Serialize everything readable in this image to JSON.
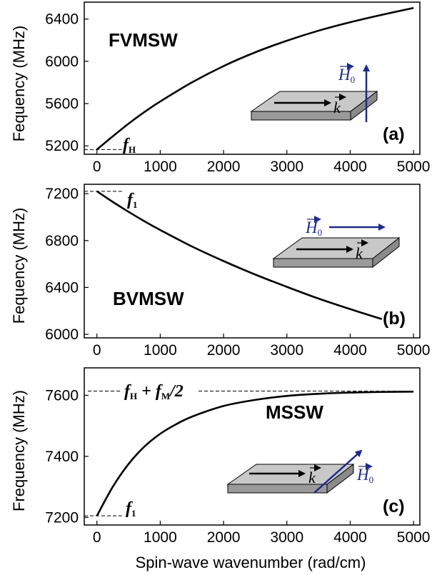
{
  "x_label": "Spin-wave wavenumber (rad/cm)",
  "colors": {
    "field_arrow": "#1f2a8c",
    "curve": "#000000",
    "slab_top": "#c8c8c8",
    "slab_side": "#9a9a9a"
  },
  "chart_data": [
    {
      "type": "line",
      "panel_id": "a",
      "title": "FVMSW",
      "panel_letter": "(a)",
      "ylabel": "Fequency (MHz)",
      "xlim": [
        -200,
        5100
      ],
      "ylim": [
        5120,
        6560
      ],
      "xticks": [
        0,
        1000,
        2000,
        3000,
        4000,
        5000
      ],
      "yticks": [
        5200,
        5600,
        6000,
        6400
      ],
      "x": [
        0,
        250,
        500,
        750,
        1000,
        1500,
        2000,
        2500,
        3000,
        3500,
        4000,
        4500,
        5000
      ],
      "y": [
        5165,
        5290,
        5410,
        5520,
        5620,
        5800,
        5955,
        6085,
        6195,
        6290,
        6370,
        6440,
        6505
      ],
      "reference_line": {
        "label": "f",
        "sub": "H",
        "value": 5165,
        "extent": "left"
      },
      "inset": {
        "field_label": "H",
        "field_sub": "0",
        "wave_label": "k",
        "field_direction": "perpendicular"
      }
    },
    {
      "type": "line",
      "panel_id": "b",
      "title": "BVMSW",
      "panel_letter": "(b)",
      "ylabel": "Fequency (MHz)",
      "xlim": [
        -200,
        5100
      ],
      "ylim": [
        5970,
        7280
      ],
      "xticks": [
        0,
        1000,
        2000,
        3000,
        4000,
        5000
      ],
      "yticks": [
        6000,
        6400,
        6800,
        7200
      ],
      "x": [
        0,
        250,
        500,
        750,
        1000,
        1500,
        2000,
        2500,
        3000,
        3500,
        4000,
        4500
      ],
      "y": [
        7220,
        7130,
        7045,
        6965,
        6890,
        6750,
        6625,
        6510,
        6405,
        6305,
        6215,
        6130
      ],
      "reference_line": {
        "label": "f",
        "sub": "1",
        "value": 7220,
        "extent": "left"
      },
      "inset": {
        "field_label": "H",
        "field_sub": "0",
        "wave_label": "k",
        "field_direction": "parallel"
      }
    },
    {
      "type": "line",
      "panel_id": "c",
      "title": "MSSW",
      "panel_letter": "(c)",
      "ylabel": "Frequency (MHz)",
      "xlim": [
        -200,
        5100
      ],
      "ylim": [
        7175,
        7690
      ],
      "xticks": [
        0,
        1000,
        2000,
        3000,
        4000,
        5000
      ],
      "yticks": [
        7200,
        7400,
        7600
      ],
      "x": [
        0,
        250,
        500,
        750,
        1000,
        1250,
        1500,
        2000,
        2500,
        3000,
        3500,
        4000,
        4500,
        5000
      ],
      "y": [
        7205,
        7300,
        7375,
        7432,
        7474,
        7505,
        7530,
        7565,
        7585,
        7598,
        7605,
        7609,
        7611,
        7612
      ],
      "reference_line": {
        "label": "f",
        "sub": "1",
        "value": 7205,
        "extent": "left"
      },
      "reference_line_top": {
        "label_a": "f",
        "sub_a": "H",
        "plus": " + ",
        "label_b": "f",
        "sub_b": "M",
        "tail": "/2",
        "value": 7614,
        "extent": "full"
      },
      "inset": {
        "field_label": "H",
        "field_sub": "0",
        "wave_label": "k",
        "field_direction": "transverse"
      }
    }
  ]
}
